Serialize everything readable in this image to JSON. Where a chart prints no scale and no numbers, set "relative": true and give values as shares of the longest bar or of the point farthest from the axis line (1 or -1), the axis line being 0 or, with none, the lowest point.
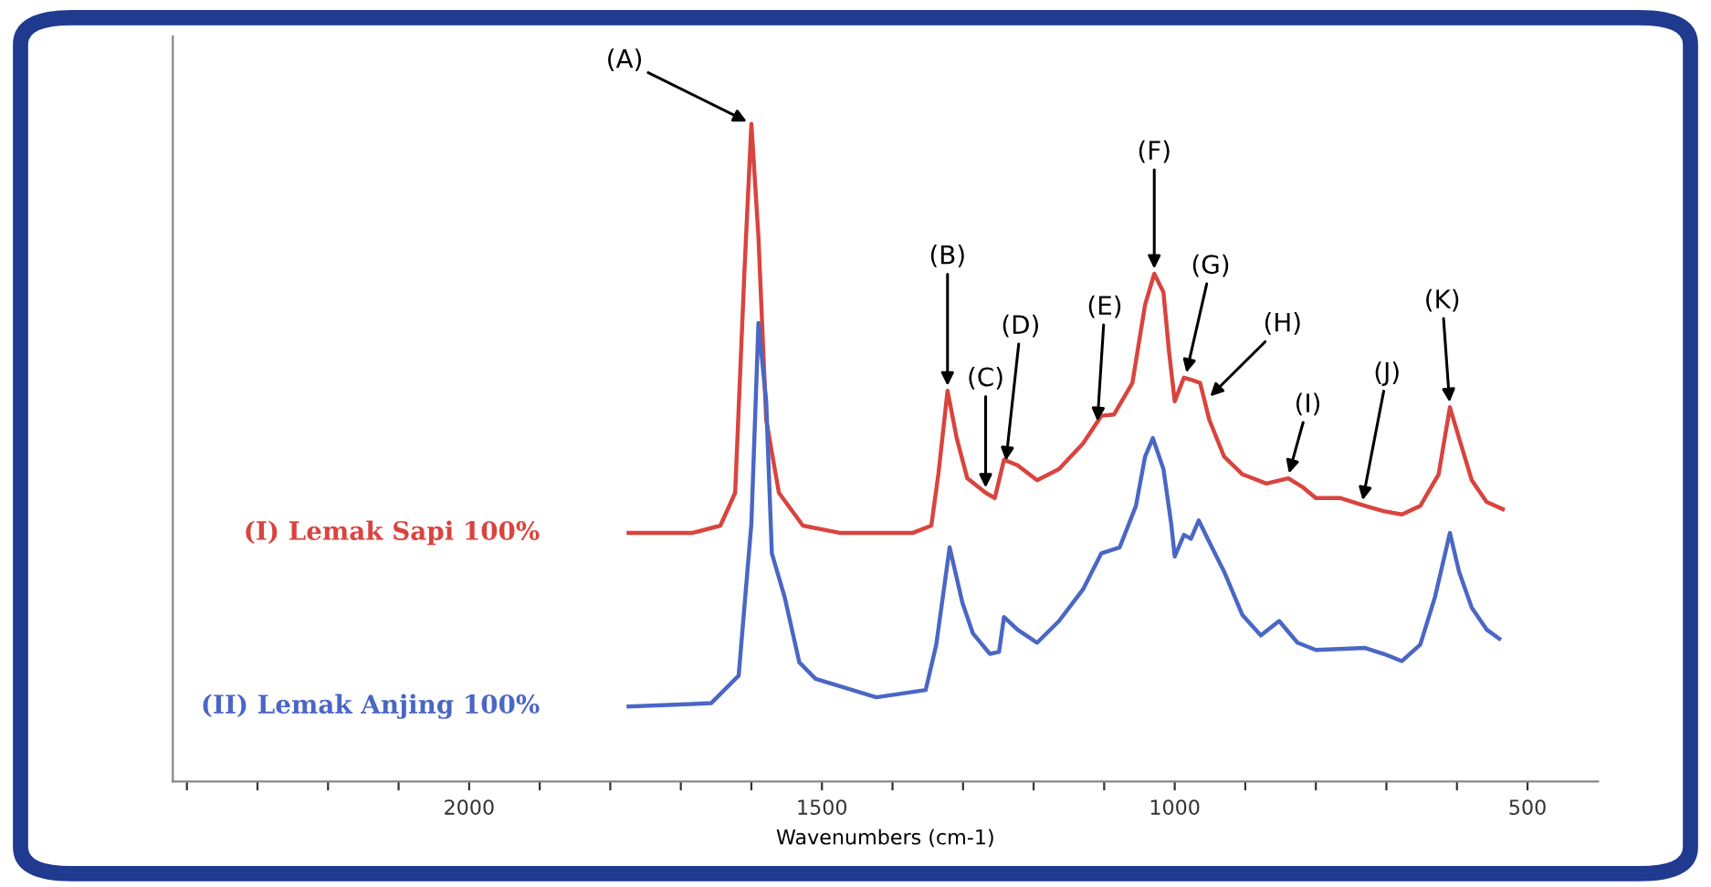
{
  "chart_data": {
    "type": "line",
    "relative": true,
    "xlabel": "Wavenumbers (cm-1)",
    "xlim": [
      2420,
      400
    ],
    "xticks": [
      {
        "value": 2400,
        "label": null
      },
      {
        "value": 2300,
        "label": null
      },
      {
        "value": 2200,
        "label": null
      },
      {
        "value": 2100,
        "label": null
      },
      2000,
      {
        "value": 1900,
        "label": null
      },
      {
        "value": 1800,
        "label": null
      },
      {
        "value": 1700,
        "label": null
      },
      {
        "value": 1600,
        "label": null
      },
      1500,
      {
        "value": 1400,
        "label": null
      },
      {
        "value": 1300,
        "label": null
      },
      {
        "value": 1200,
        "label": null
      },
      {
        "value": 1100,
        "label": null
      },
      1000,
      {
        "value": 900,
        "label": null
      },
      {
        "value": 800,
        "label": null
      },
      {
        "value": 700,
        "label": null
      },
      {
        "value": 600,
        "label": null
      },
      500
    ],
    "tick_labels": "x",
    "grid": false,
    "legend": false,
    "marker": "none",
    "line_style": "solid",
    "series": [
      {
        "name": "(I) Lemak Sapi 100%",
        "color": "#d9443e",
        "x": [
          1774,
          1683,
          1644,
          1623,
          1610,
          1600,
          1590,
          1579,
          1561,
          1527,
          1475,
          1371,
          1345,
          1335,
          1322,
          1309,
          1294,
          1268,
          1255,
          1242,
          1223,
          1195,
          1164,
          1130,
          1104,
          1086,
          1060,
          1042,
          1029,
          1016,
          1008,
          1000,
          987,
          977,
          964,
          951,
          930,
          904,
          870,
          839,
          818,
          800,
          766,
          730,
          704,
          678,
          652,
          626,
          610,
          597,
          579,
          558,
          535
        ],
        "values": [
          0.378,
          0.378,
          0.389,
          0.439,
          0.772,
          1.0,
          0.828,
          0.55,
          0.439,
          0.389,
          0.378,
          0.378,
          0.389,
          0.467,
          0.594,
          0.522,
          0.461,
          0.439,
          0.431,
          0.489,
          0.481,
          0.458,
          0.475,
          0.514,
          0.556,
          0.558,
          0.606,
          0.725,
          0.772,
          0.744,
          0.653,
          0.578,
          0.614,
          0.611,
          0.606,
          0.55,
          0.494,
          0.467,
          0.453,
          0.461,
          0.447,
          0.431,
          0.431,
          0.419,
          0.411,
          0.406,
          0.419,
          0.467,
          0.569,
          0.522,
          0.458,
          0.425,
          0.414
        ]
      },
      {
        "name": "(II) Lemak Anjing 100%",
        "color": "#4a67c4",
        "x": [
          1774,
          1657,
          1618,
          1600,
          1590,
          1579,
          1571,
          1553,
          1532,
          1509,
          1423,
          1353,
          1338,
          1319,
          1301,
          1286,
          1262,
          1249,
          1242,
          1223,
          1195,
          1164,
          1130,
          1104,
          1078,
          1055,
          1042,
          1031,
          1016,
          1005,
          1000,
          987,
          977,
          966,
          951,
          930,
          904,
          878,
          852,
          826,
          800,
          730,
          704,
          678,
          652,
          631,
          610,
          597,
          579,
          558,
          540
        ],
        "values": [
          0.114,
          0.119,
          0.161,
          0.392,
          0.697,
          0.578,
          0.347,
          0.281,
          0.181,
          0.156,
          0.128,
          0.139,
          0.208,
          0.356,
          0.272,
          0.225,
          0.194,
          0.197,
          0.25,
          0.231,
          0.211,
          0.244,
          0.292,
          0.347,
          0.356,
          0.419,
          0.494,
          0.522,
          0.475,
          0.392,
          0.342,
          0.375,
          0.369,
          0.397,
          0.364,
          0.319,
          0.253,
          0.222,
          0.244,
          0.211,
          0.2,
          0.203,
          0.194,
          0.183,
          0.208,
          0.281,
          0.378,
          0.319,
          0.264,
          0.231,
          0.217
        ]
      }
    ],
    "annotations": [
      {
        "text": "(A)",
        "x": 1600,
        "y": 1.0
      },
      {
        "text": "(B)",
        "x": 1322,
        "y": 0.594
      },
      {
        "text": "(C)",
        "x": 1268,
        "y": 0.439
      },
      {
        "text": "(D)",
        "x": 1240,
        "y": 0.48
      },
      {
        "text": "(E)",
        "x": 1110,
        "y": 0.54
      },
      {
        "text": "(F)",
        "x": 1029,
        "y": 0.772
      },
      {
        "text": "(G)",
        "x": 985,
        "y": 0.614
      },
      {
        "text": "(H)",
        "x": 955,
        "y": 0.58
      },
      {
        "text": "(I)",
        "x": 840,
        "y": 0.461
      },
      {
        "text": "(J)",
        "x": 735,
        "y": 0.42
      },
      {
        "text": "(K)",
        "x": 610,
        "y": 0.569
      }
    ]
  }
}
